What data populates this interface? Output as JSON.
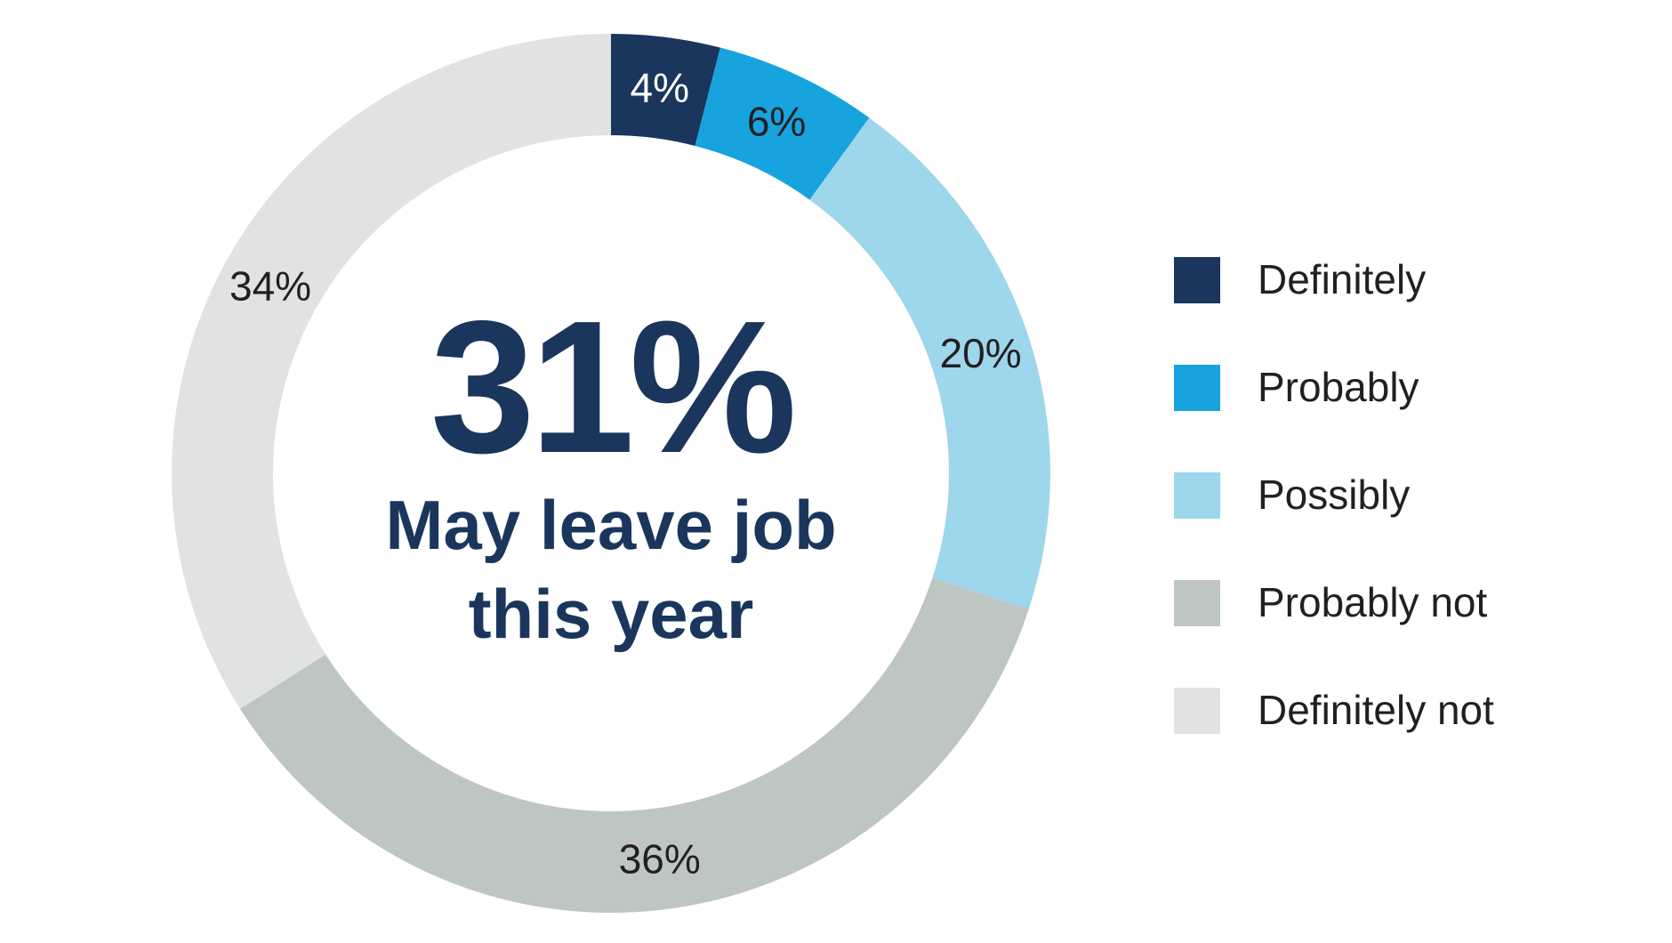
{
  "chart_data": {
    "type": "pie",
    "categories": [
      "Definitely",
      "Probably",
      "Possibly",
      "Probably not",
      "Definitely not"
    ],
    "values": [
      4,
      6,
      20,
      36,
      34
    ],
    "value_labels": [
      "4%",
      "6%",
      "20%",
      "36%",
      "34%"
    ],
    "colors": [
      "#1b365d",
      "#17a3de",
      "#9ed6ec",
      "#bec6c3",
      "#e1e3e3"
    ],
    "label_colors": [
      "#ffffff",
      "#231f20",
      "#231f20",
      "#231f20",
      "#231f20"
    ],
    "legend_position": "right",
    "center_value": "31%",
    "center_caption_line1": "May leave job",
    "center_caption_line2": "this year"
  },
  "legend": {
    "items": [
      {
        "label": "Definitely",
        "color": "#1b365d"
      },
      {
        "label": "Probably",
        "color": "#17a3de"
      },
      {
        "label": "Possibly",
        "color": "#9ed6ec"
      },
      {
        "label": "Probably not",
        "color": "#bec6c3"
      },
      {
        "label": "Definitely not",
        "color": "#e1e3e3"
      }
    ]
  }
}
